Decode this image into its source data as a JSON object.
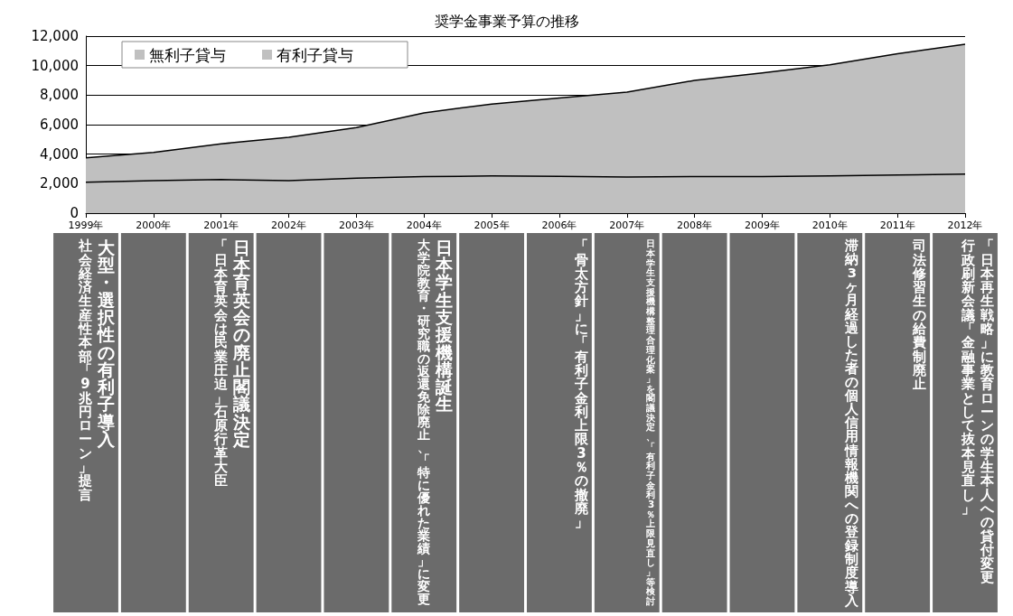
{
  "chart_data": {
    "type": "area",
    "title": "奨学金事業予算の推移",
    "stacked": true,
    "grid": "y",
    "legend": "top left",
    "marker": "none",
    "categories": [
      "1999年",
      "2000年",
      "2001年",
      "2002年",
      "2003年",
      "2004年",
      "2005年",
      "2006年",
      "2007年",
      "2008年",
      "2009年",
      "2010年",
      "2011年",
      "2012年"
    ],
    "ylim": [
      0,
      12000
    ],
    "yticks": [
      0,
      {
        "value": 2000,
        "label": "2,000"
      },
      {
        "value": 4000,
        "label": "4,000"
      },
      {
        "value": 6000,
        "label": "6,000"
      },
      {
        "value": 8000,
        "label": "8,000"
      },
      {
        "value": 10000,
        "label": "10,000"
      },
      {
        "value": 12000,
        "label": "12,000"
      }
    ],
    "series": [
      {
        "name": "無利子貸与",
        "color": "#c0c0c0",
        "values": [
          2100,
          2200,
          2280,
          2200,
          2380,
          2480,
          2520,
          2500,
          2450,
          2480,
          2480,
          2530,
          2580,
          2650
        ]
      },
      {
        "name": "有利子貸与",
        "color": "#c0c0c0",
        "values": [
          1650,
          1920,
          2420,
          2950,
          3420,
          4320,
          4880,
          5300,
          5750,
          6520,
          7020,
          7520,
          8220,
          8800
        ]
      }
    ],
    "annotations": [
      "大型・選択性の有利子導入",
      "社会経済生産性本部「9兆円ローン」提言",
      "日本育英会の廃止閣議決定",
      "「日本育英会は民業圧迫」石原行革大臣",
      "日本学生支援機構誕生",
      "大学院教育・研究職の返還免除廃止、「特に優れた業績」に変更",
      "「骨太方針」に「有利子金利上限3％の撤廃」",
      "日本学生支援機構整理合理化案」を閣議決定、「有利子金利3％上限見直し」等検討",
      "滞納3ヶ月経過した者の個人信用情報機関への登録制度導入",
      "司法修習生の給費制廃止",
      "「日本再生戦略」に教育ローンの学生本人への貸付変更",
      "行政刷新会議「金融事業として抜本見直し」"
    ]
  }
}
